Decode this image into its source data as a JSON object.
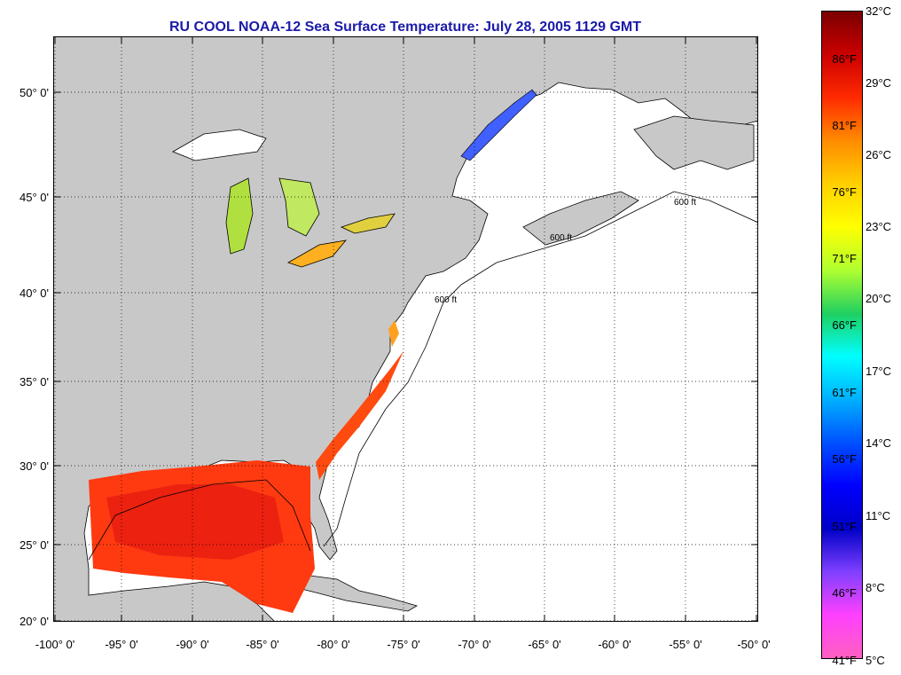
{
  "title": "RU COOL  NOAA-12  Sea Surface Temperature:  July 28, 2005 1129 GMT",
  "lat_labels": [
    "50° 0'",
    "45° 0'",
    "40° 0'",
    "35° 0'",
    "30° 0'",
    "25° 0'",
    "20° 0'"
  ],
  "lon_labels": [
    "-100° 0'",
    "-95° 0'",
    "-90° 0'",
    "-85° 0'",
    "-80° 0'",
    "-75° 0'",
    "-70° 0'",
    "-65° 0'",
    "-60° 0'",
    "-55° 0'",
    "-50° 0'"
  ],
  "contour_label": "600 ft",
  "colorbar": {
    "celsius_labels": [
      "32°C",
      "29°C",
      "26°C",
      "23°C",
      "20°C",
      "17°C",
      "14°C",
      "11°C",
      "8°C",
      "5°C"
    ],
    "fahrenheit_labels": [
      "86°F",
      "81°F",
      "76°F",
      "71°F",
      "66°F",
      "61°F",
      "56°F",
      "51°F",
      "46°F",
      "41°F"
    ],
    "colors": [
      "#7a0000",
      "#cc0000",
      "#ff2a00",
      "#ff8c00",
      "#ffd000",
      "#ffff00",
      "#b0ff30",
      "#20d060",
      "#00ffff",
      "#00b0ff",
      "#0050ff",
      "#0000ff",
      "#0000c8",
      "#8040ff",
      "#ff40ff",
      "#ff60c0"
    ]
  },
  "colors": {
    "land": "#c8c8c8",
    "ocean": "#ffffff",
    "title": "#1a1aa8",
    "sst_warm": "#ff3a10"
  }
}
